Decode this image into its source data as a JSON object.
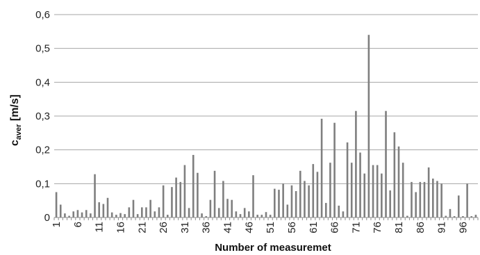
{
  "chart_data": {
    "type": "bar",
    "xlabel": "Number of measuremet",
    "ylabel_main": "c",
    "ylabel_sub": "aver",
    "ylabel_unit": " [m/s]",
    "ylim": [
      0,
      0.6
    ],
    "yticks": [
      "0",
      "0,1",
      "0,2",
      "0,3",
      "0,4",
      "0,5",
      "0,6"
    ],
    "xticks": [
      "1",
      "6",
      "11",
      "16",
      "21",
      "26",
      "31",
      "36",
      "41",
      "46",
      "51",
      "56",
      "61",
      "66",
      "71",
      "76",
      "81",
      "86",
      "91",
      "96"
    ],
    "grid": true,
    "bar_color": "#7f7f7f",
    "grid_color": "#a6a6a6",
    "x": [
      1,
      2,
      3,
      4,
      5,
      6,
      7,
      8,
      9,
      10,
      11,
      12,
      13,
      14,
      15,
      16,
      17,
      18,
      19,
      20,
      21,
      22,
      23,
      24,
      25,
      26,
      27,
      28,
      29,
      30,
      31,
      32,
      33,
      34,
      35,
      36,
      37,
      38,
      39,
      40,
      41,
      42,
      43,
      44,
      45,
      46,
      47,
      48,
      49,
      50,
      51,
      52,
      53,
      54,
      55,
      56,
      57,
      58,
      59,
      60,
      61,
      62,
      63,
      64,
      65,
      66,
      67,
      68,
      69,
      70,
      71,
      72,
      73,
      74,
      75,
      76,
      77,
      78,
      79,
      80,
      81,
      82,
      83,
      84,
      85,
      86,
      87,
      88,
      89,
      90,
      91,
      92,
      93,
      94,
      95,
      96,
      97,
      98,
      99
    ],
    "values": [
      0.075,
      0.038,
      0.012,
      0.005,
      0.018,
      0.022,
      0.015,
      0.022,
      0.012,
      0.128,
      0.045,
      0.04,
      0.058,
      0.015,
      0.008,
      0.013,
      0.01,
      0.03,
      0.052,
      0.01,
      0.03,
      0.03,
      0.052,
      0.018,
      0.03,
      0.095,
      0.008,
      0.09,
      0.118,
      0.105,
      0.155,
      0.028,
      0.185,
      0.132,
      0.012,
      0.004,
      0.052,
      0.138,
      0.028,
      0.108,
      0.055,
      0.052,
      0.018,
      0.01,
      0.028,
      0.018,
      0.125,
      0.008,
      0.008,
      0.016,
      0.008,
      0.085,
      0.082,
      0.1,
      0.038,
      0.095,
      0.078,
      0.138,
      0.108,
      0.095,
      0.158,
      0.135,
      0.292,
      0.043,
      0.162,
      0.28,
      0.035,
      0.018,
      0.222,
      0.162,
      0.315,
      0.192,
      0.13,
      0.54,
      0.155,
      0.155,
      0.13,
      0.315,
      0.08,
      0.252,
      0.21,
      0.162,
      0.005,
      0.105,
      0.075,
      0.105,
      0.105,
      0.148,
      0.115,
      0.108,
      0.1,
      0.005,
      0.025,
      0.004,
      0.065,
      0.004,
      0.1,
      0.004,
      0.008
    ]
  }
}
